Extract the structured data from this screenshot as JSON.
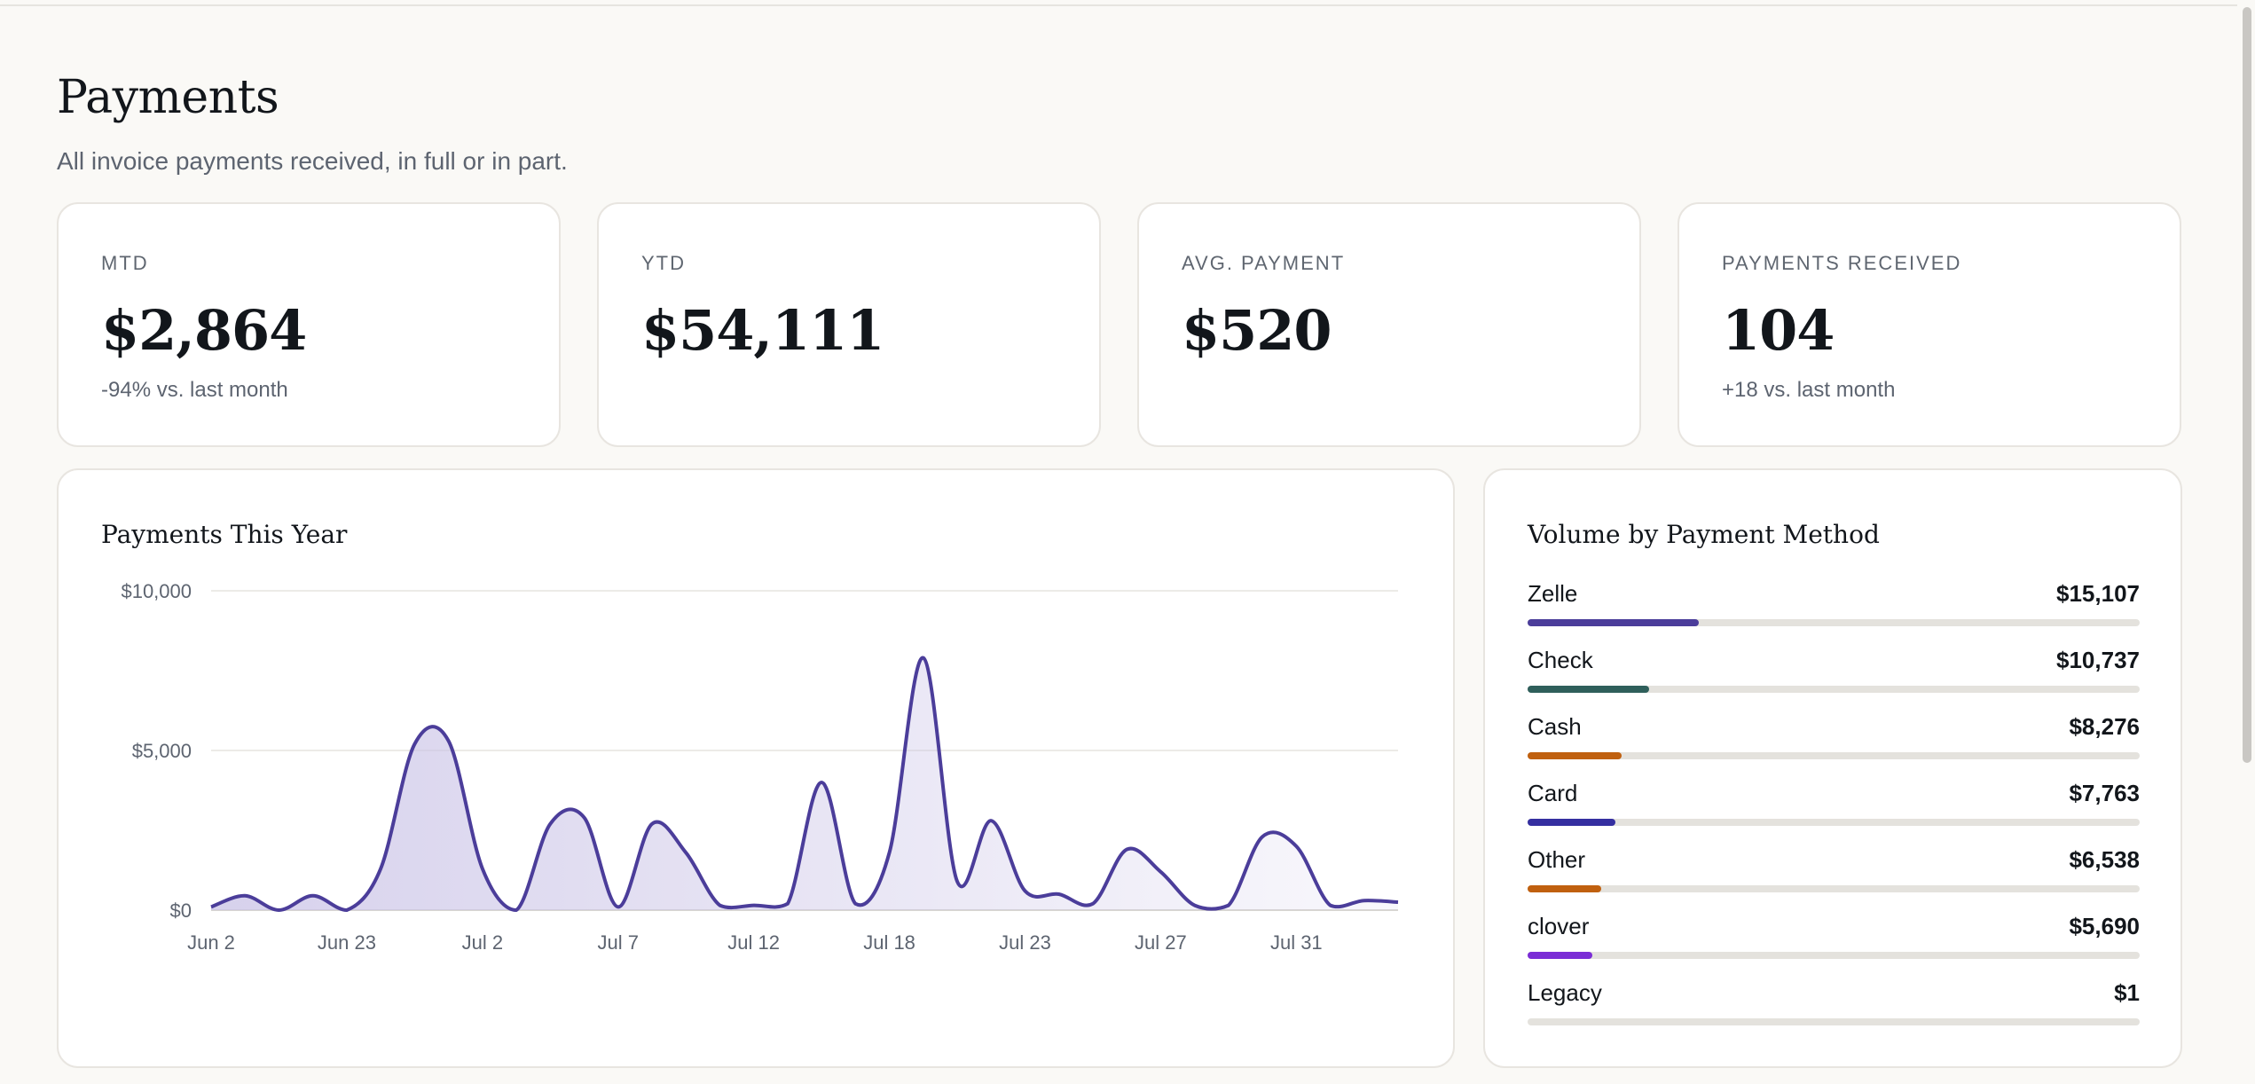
{
  "header": {
    "title": "Payments",
    "subtitle": "All invoice payments received, in full or in part."
  },
  "stats": [
    {
      "label": "MTD",
      "value": "$2,864",
      "delta": "-94% vs. last month"
    },
    {
      "label": "YTD",
      "value": "$54,111",
      "delta": ""
    },
    {
      "label": "AVG. PAYMENT",
      "value": "$520",
      "delta": ""
    },
    {
      "label": "PAYMENTS RECEIVED",
      "value": "104",
      "delta": "+18 vs. last month"
    }
  ],
  "chart": {
    "title": "Payments This Year"
  },
  "chart_data": {
    "type": "area",
    "title": "Payments This Year",
    "xlabel": "",
    "ylabel": "",
    "ylim": [
      0,
      10000
    ],
    "yticks": [
      {
        "value": 10000,
        "label": "$10,000"
      },
      {
        "value": 5000,
        "label": "$5,000"
      },
      {
        "value": 0,
        "label": "$0"
      }
    ],
    "xticks": [
      {
        "label": "Jun 2",
        "index": 0
      },
      {
        "label": "Jun 23",
        "index": 4
      },
      {
        "label": "Jul 2",
        "index": 8
      },
      {
        "label": "Jul 7",
        "index": 12
      },
      {
        "label": "Jul 12",
        "index": 16
      },
      {
        "label": "Jul 18",
        "index": 20
      },
      {
        "label": "Jul 23",
        "index": 24
      },
      {
        "label": "Jul 27",
        "index": 28
      },
      {
        "label": "Jul 31",
        "index": 32
      }
    ],
    "grid": true,
    "color": "#4b3d9a",
    "series": [
      {
        "values": [
          100,
          450,
          0,
          450,
          0,
          1300,
          5200,
          5300,
          1300,
          0,
          2700,
          2900,
          100,
          2700,
          1800,
          150,
          150,
          200,
          4000,
          200,
          1800,
          7900,
          900,
          2800,
          600,
          500,
          200,
          1900,
          1200,
          150,
          150,
          2300,
          2000,
          150,
          300,
          250
        ]
      }
    ]
  },
  "methods": {
    "title": "Volume by Payment Method",
    "max": 54111,
    "items": [
      {
        "name": "Zelle",
        "amount": "$15,107",
        "value": 15107,
        "color": "#4b3d9a"
      },
      {
        "name": "Check",
        "amount": "$10,737",
        "value": 10737,
        "color": "#2f5f5b"
      },
      {
        "name": "Cash",
        "amount": "$8,276",
        "value": 8276,
        "color": "#c0600f"
      },
      {
        "name": "Card",
        "amount": "$7,763",
        "value": 7763,
        "color": "#352fa0"
      },
      {
        "name": "Other",
        "amount": "$6,538",
        "value": 6538,
        "color": "#c0600f"
      },
      {
        "name": "clover",
        "amount": "$5,690",
        "value": 5690,
        "color": "#7b2dd6"
      },
      {
        "name": "Legacy",
        "amount": "$1",
        "value": 1,
        "color": "#7b2dd6"
      }
    ]
  }
}
